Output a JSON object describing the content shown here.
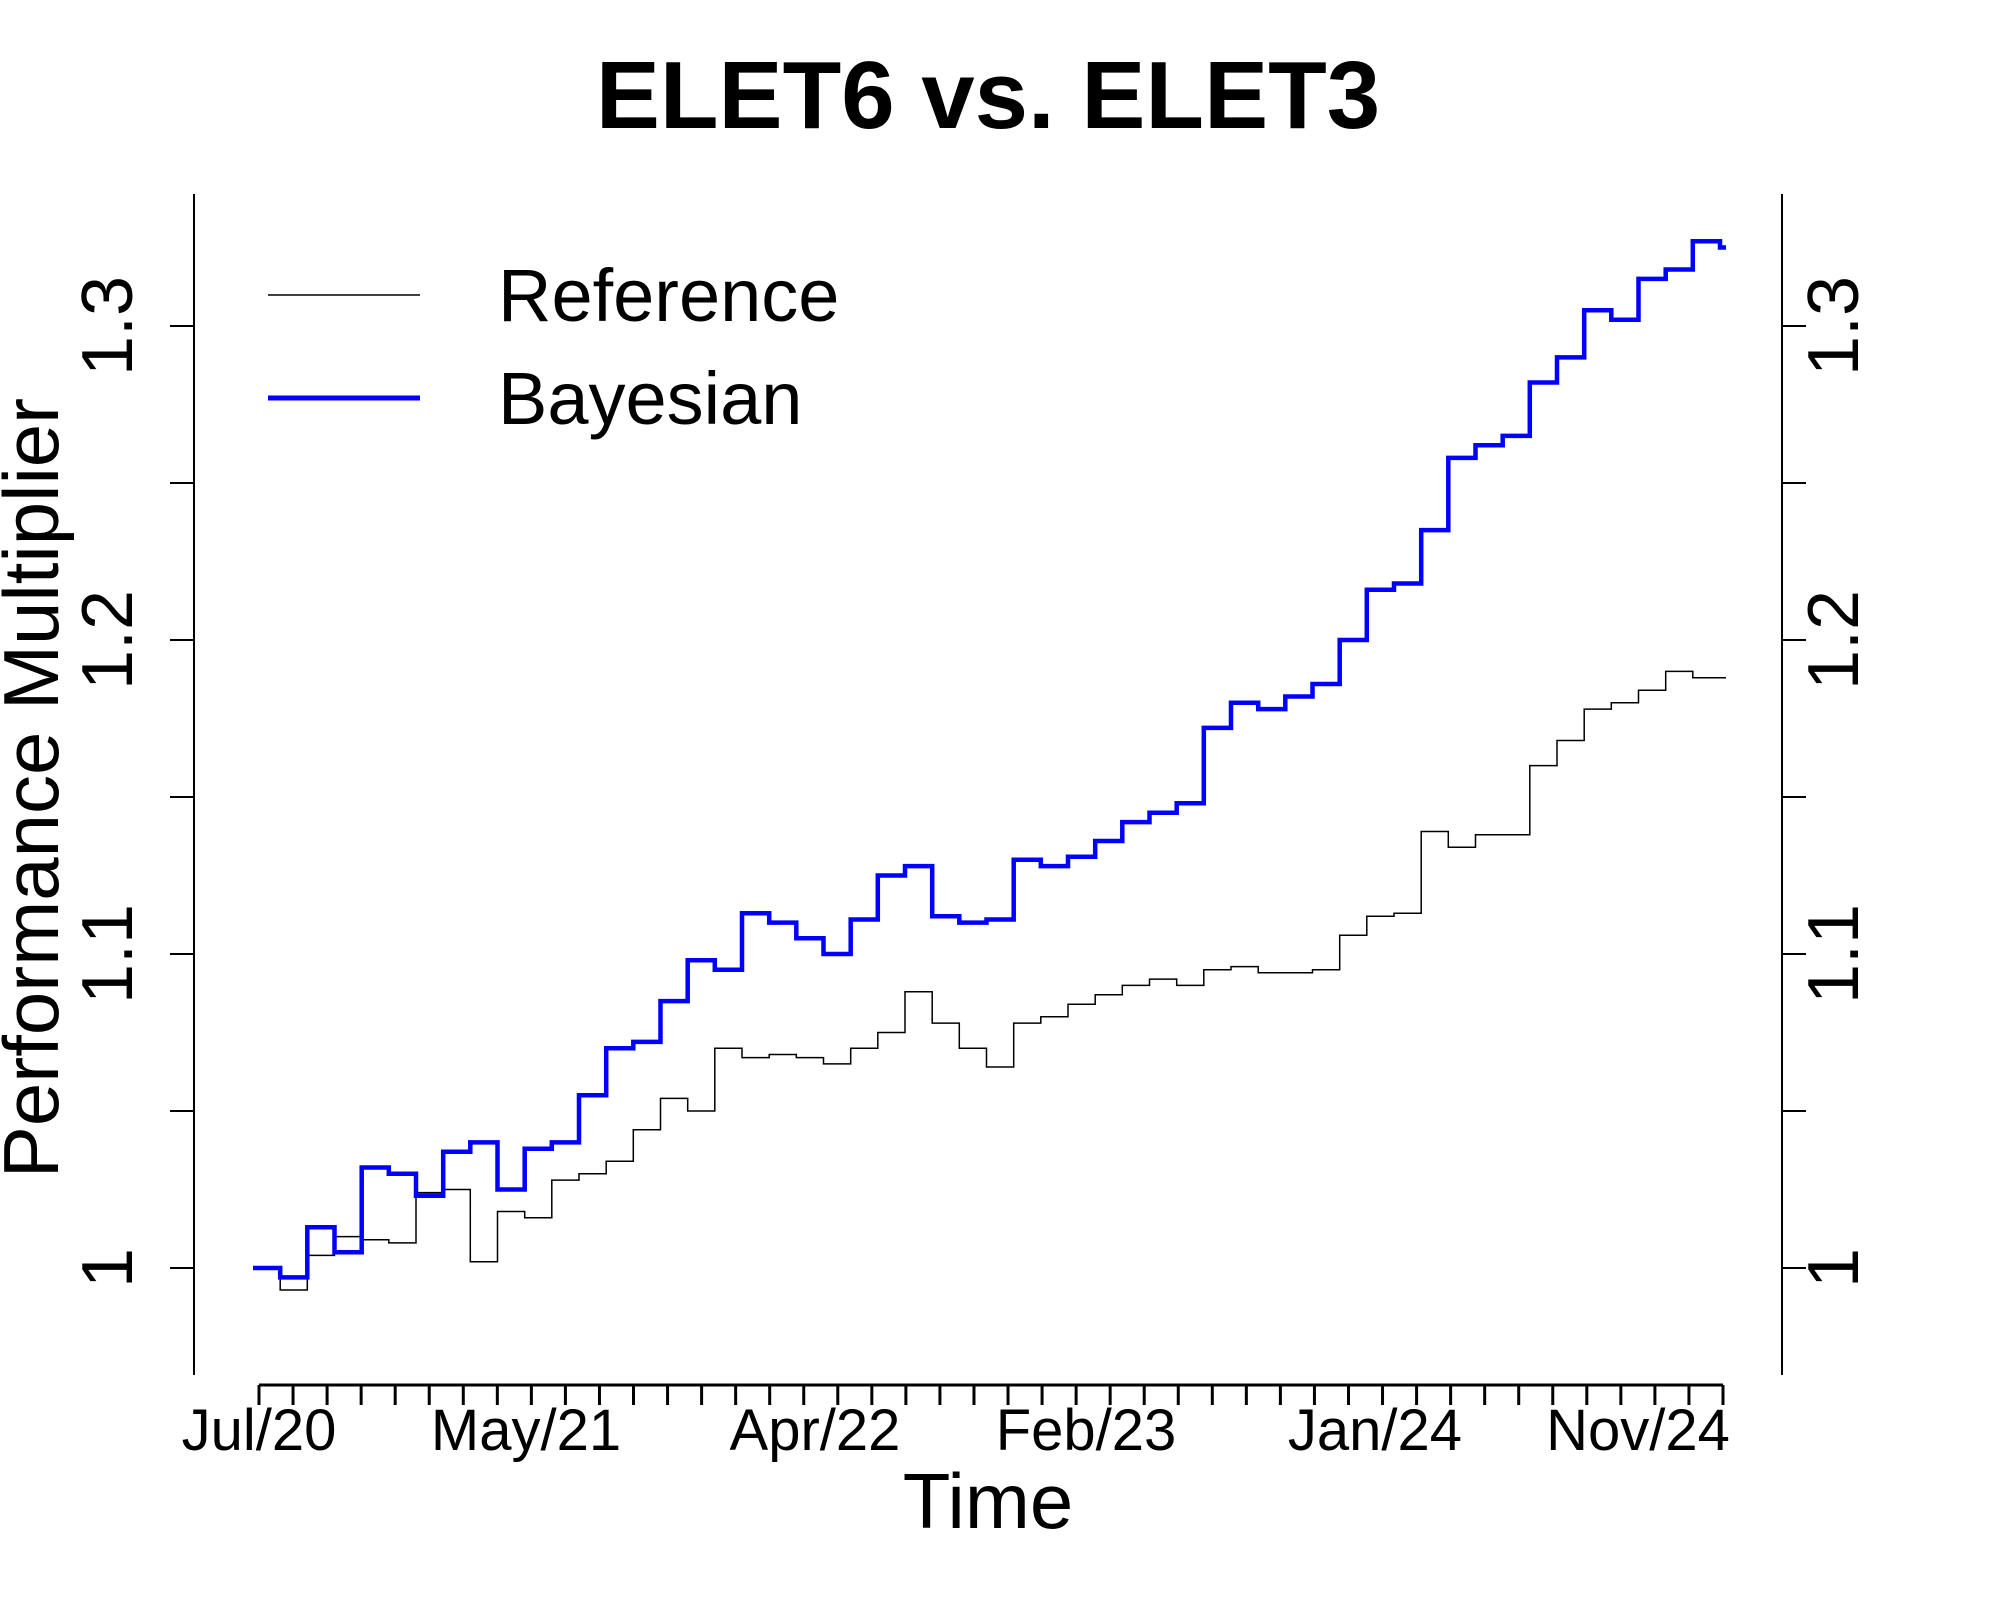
{
  "chart_data": {
    "type": "line",
    "title": "ELET6 vs. ELET3",
    "xlabel": "Time",
    "ylabel": "Performance Multiplier",
    "x_tick_labels": [
      "Jul/20",
      "May/21",
      "Apr/22",
      "Feb/23",
      "Jan/24",
      "Nov/24"
    ],
    "y_ticks": [
      1,
      1.1,
      1.2,
      1.3
    ],
    "y_minor_ticks": [
      1.05,
      1.15,
      1.25
    ],
    "ylim": [
      0.966,
      1.342
    ],
    "xlim": [
      "Jun/20",
      "Feb/25"
    ],
    "grid": false,
    "legend_position": "top-left",
    "x_dates": [
      "Jul/20",
      "Aug/20",
      "Sep/20",
      "Oct/20",
      "Nov/20",
      "Dec/20",
      "Jan/21",
      "Feb/21",
      "Mar/21",
      "Apr/21",
      "May/21",
      "Jun/21",
      "Jul/21",
      "Aug/21",
      "Sep/21",
      "Oct/21",
      "Nov/21",
      "Dec/21",
      "Jan/22",
      "Feb/22",
      "Mar/22",
      "Apr/22",
      "May/22",
      "Jun/22",
      "Jul/22",
      "Aug/22",
      "Sep/22",
      "Oct/22",
      "Nov/22",
      "Dec/22",
      "Jan/23",
      "Feb/23",
      "Mar/23",
      "Apr/23",
      "May/23",
      "Jun/23",
      "Jul/23",
      "Aug/23",
      "Sep/23",
      "Oct/23",
      "Nov/23",
      "Dec/23",
      "Jan/24",
      "Feb/24",
      "Mar/24",
      "Apr/24",
      "May/24",
      "Jun/24",
      "Jul/24",
      "Aug/24",
      "Sep/24",
      "Oct/24",
      "Nov/24",
      "Dec/24",
      "Jan/25"
    ],
    "series": [
      {
        "name": "Reference",
        "color": "#000000",
        "values": [
          1.0,
          0.993,
          1.004,
          1.01,
          1.009,
          1.008,
          1.024,
          1.025,
          1.002,
          1.018,
          1.016,
          1.028,
          1.03,
          1.034,
          1.044,
          1.054,
          1.05,
          1.07,
          1.067,
          1.068,
          1.067,
          1.065,
          1.07,
          1.075,
          1.088,
          1.078,
          1.07,
          1.064,
          1.078,
          1.08,
          1.084,
          1.087,
          1.09,
          1.092,
          1.09,
          1.095,
          1.096,
          1.094,
          1.094,
          1.095,
          1.106,
          1.112,
          1.113,
          1.139,
          1.134,
          1.138,
          1.138,
          1.16,
          1.168,
          1.178,
          1.18,
          1.184,
          1.19,
          1.188,
          1.188
        ]
      },
      {
        "name": "Bayesian",
        "color": "#0000ff",
        "values": [
          1.0,
          0.997,
          1.013,
          1.005,
          1.032,
          1.03,
          1.023,
          1.037,
          1.04,
          1.025,
          1.038,
          1.04,
          1.055,
          1.07,
          1.072,
          1.085,
          1.098,
          1.095,
          1.113,
          1.11,
          1.105,
          1.1,
          1.111,
          1.125,
          1.128,
          1.112,
          1.11,
          1.111,
          1.13,
          1.128,
          1.131,
          1.136,
          1.142,
          1.145,
          1.148,
          1.172,
          1.18,
          1.178,
          1.182,
          1.186,
          1.2,
          1.216,
          1.218,
          1.235,
          1.258,
          1.262,
          1.265,
          1.282,
          1.29,
          1.305,
          1.302,
          1.315,
          1.318,
          1.327,
          1.325
        ]
      }
    ]
  }
}
